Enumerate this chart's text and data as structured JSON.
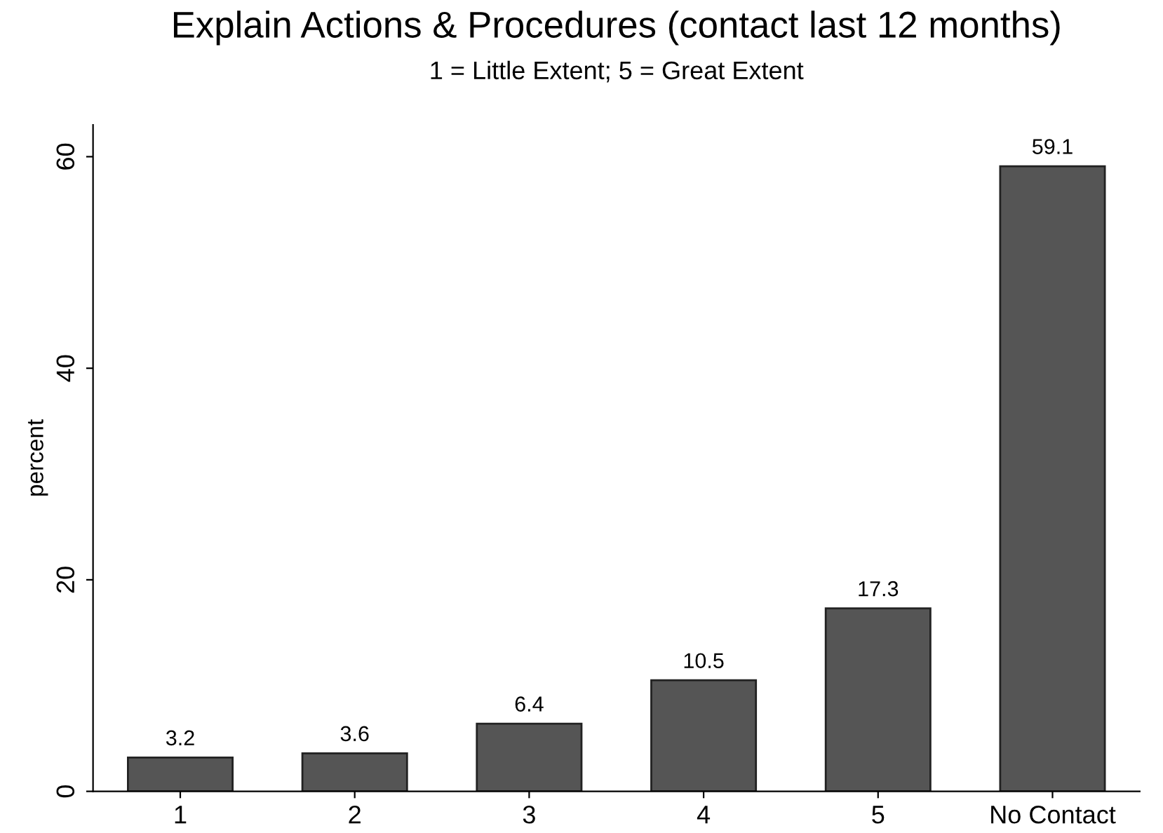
{
  "chart_data": {
    "type": "bar",
    "title": "Explain Actions & Procedures (contact last 12 months)",
    "subtitle": "1 = Little Extent; 5 = Great Extent",
    "ylabel": "percent",
    "categories": [
      "1",
      "2",
      "3",
      "4",
      "5",
      "No Contact"
    ],
    "values": [
      3.2,
      3.6,
      6.4,
      10.5,
      17.3,
      59.1
    ],
    "color": "#555555",
    "ylim": [
      0,
      63
    ],
    "yticks": [
      0,
      20,
      40,
      60
    ],
    "grid": false,
    "data_labels": true
  }
}
